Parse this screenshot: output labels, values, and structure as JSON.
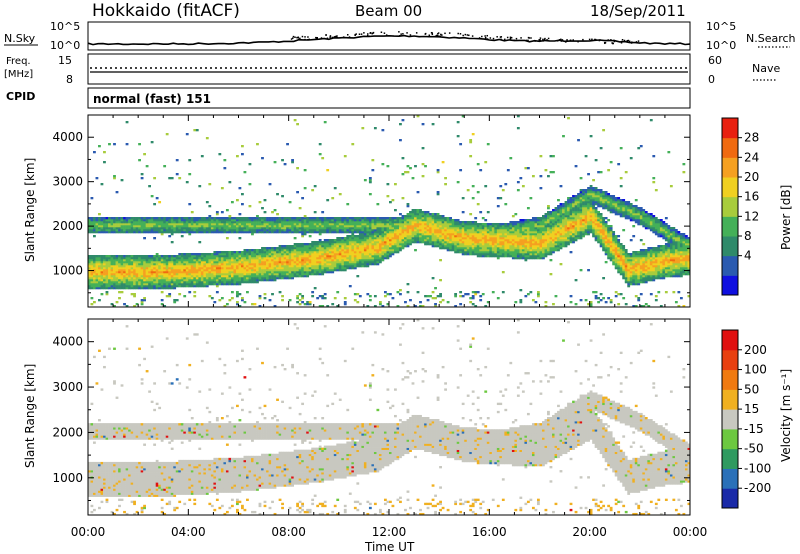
{
  "header": {
    "station": "Hokkaido (fitACF)",
    "beam": "Beam 00",
    "date": "18/Sep/2011"
  },
  "top_panels": {
    "nsky": {
      "label": "N.Sky",
      "ticks": [
        "10^5",
        "10^0"
      ],
      "right_ticks": [
        "10^5",
        "10^0"
      ],
      "right_label": "N.Search"
    },
    "freq": {
      "label_line1": "Freq.",
      "label_line2": "[MHz]",
      "ticks": [
        "15",
        "8"
      ],
      "right_ticks": [
        "60",
        "0"
      ],
      "right_label": "Nave"
    },
    "cpid": {
      "label": "CPID",
      "text": "normal (fast) 151"
    }
  },
  "power_panel": {
    "ylabel": "Slant Range [km]",
    "colorbar_label": "Power [dB]",
    "colorbar_ticks": [
      "28",
      "24",
      "20",
      "16",
      "12",
      "8",
      "4"
    ],
    "colors": [
      "#1010e0",
      "#2a5ab0",
      "#2f8a6a",
      "#44b058",
      "#a8cc3c",
      "#f0d020",
      "#f5a020",
      "#f06a10",
      "#e82010"
    ]
  },
  "velocity_panel": {
    "ylabel": "Slant Range [km]",
    "colorbar_label": "Velocity [m s⁻¹]",
    "colorbar_ticks": [
      "200",
      "100",
      "50",
      "15",
      "-15",
      "-50",
      "-100",
      "-200"
    ],
    "colors": [
      "#1a2aa8",
      "#2a70b8",
      "#2f9a60",
      "#6cc840",
      "#c8c8c0",
      "#f0b020",
      "#f07a10",
      "#e84010",
      "#e01010"
    ]
  },
  "xaxis": {
    "label": "Time UT",
    "ticks": [
      "00:00",
      "04:00",
      "08:00",
      "12:00",
      "16:00",
      "20:00",
      "00:00"
    ]
  },
  "chart_data": [
    {
      "type": "heatmap",
      "title": "Power",
      "xlabel": "Time UT",
      "ylabel": "Slant Range [km]",
      "xlim": [
        0,
        24
      ],
      "ylim": [
        180,
        4500
      ],
      "y_ticks": [
        1000,
        2000,
        3000,
        4000
      ],
      "colorbar": {
        "label": "Power [dB]",
        "range": [
          0,
          32
        ],
        "ticks": [
          4,
          8,
          12,
          16,
          20,
          24,
          28
        ]
      },
      "bands": [
        {
          "t": [
            0,
            3,
            6,
            9,
            11.5,
            13,
            15,
            18,
            20,
            21.5,
            23,
            24
          ],
          "range": [
            950,
            950,
            1050,
            1250,
            1500,
            2000,
            1700,
            1600,
            2200,
            1000,
            1200,
            1250
          ],
          "width": 380,
          "power": 26
        },
        {
          "t": [
            13,
            15,
            18,
            20,
            22,
            24
          ],
          "range": [
            2000,
            1700,
            2000,
            2700,
            2200,
            1500
          ],
          "width": 200,
          "power": 18
        }
      ]
    },
    {
      "type": "heatmap",
      "title": "Velocity",
      "xlabel": "Time UT",
      "ylabel": "Slant Range [km]",
      "xlim": [
        0,
        24
      ],
      "ylim": [
        180,
        4500
      ],
      "y_ticks": [
        1000,
        2000,
        3000,
        4000
      ],
      "colorbar": {
        "label": "Velocity [m s⁻¹]",
        "range": [
          -200,
          200
        ],
        "ticks": [
          -200,
          -100,
          -50,
          -15,
          15,
          50,
          100,
          200
        ]
      },
      "dominant_value": 0
    }
  ]
}
